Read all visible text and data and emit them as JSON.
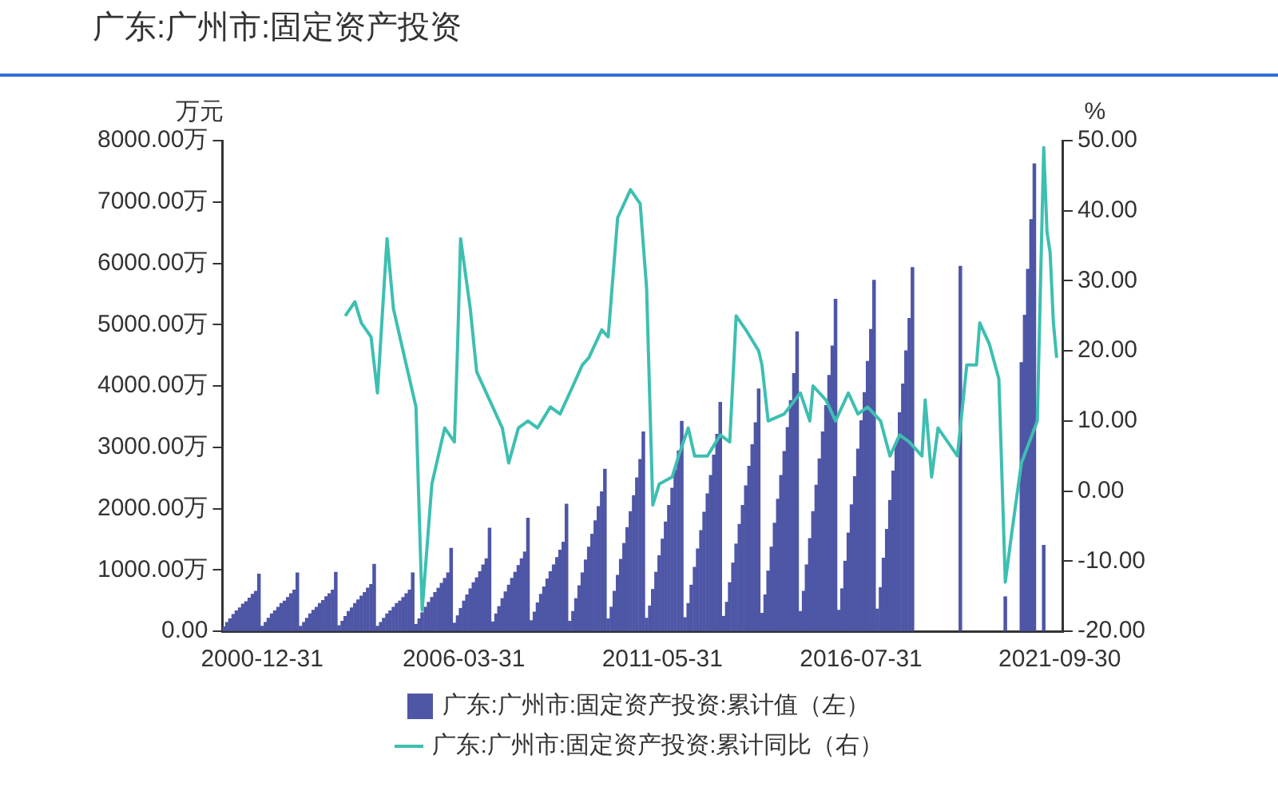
{
  "chart_data": {
    "type": "bar",
    "title": "广东:广州市:固定资产投资",
    "ylabel": "万元",
    "y2label": "%",
    "xlim": [
      "1999-12-20",
      "2021-11-01"
    ],
    "xticks": [
      "2000-12-31",
      "2006-03-31",
      "2011-05-31",
      "2016-07-31",
      "2021-09-30"
    ],
    "ylim": [
      0,
      8000
    ],
    "yticks": [
      {
        "value": 0,
        "label": "0.00"
      },
      {
        "value": 1000,
        "label": "1000.00万"
      },
      {
        "value": 2000,
        "label": "2000.00万"
      },
      {
        "value": 3000,
        "label": "3000.00万"
      },
      {
        "value": 4000,
        "label": "4000.00万"
      },
      {
        "value": 5000,
        "label": "5000.00万"
      },
      {
        "value": 6000,
        "label": "6000.00万"
      },
      {
        "value": 7000,
        "label": "7000.00万"
      },
      {
        "value": 8000,
        "label": "8000.00万"
      }
    ],
    "y2lim": [
      -20,
      50
    ],
    "y2ticks": [
      {
        "value": -20,
        "label": "-20.00"
      },
      {
        "value": -10,
        "label": "-10.00"
      },
      {
        "value": 0,
        "label": "0.00"
      },
      {
        "value": 10,
        "label": "10.00"
      },
      {
        "value": 20,
        "label": "20.00"
      },
      {
        "value": 30,
        "label": "30.00"
      },
      {
        "value": 40,
        "label": "40.00"
      },
      {
        "value": 50,
        "label": "50.00"
      }
    ],
    "grid": false,
    "legend": "bottom",
    "series": [
      {
        "name": "广东:广州市:固定资产投资:累计值（左）",
        "color": "#4e56a6",
        "x": [
          "2000-01",
          "2000-02",
          "2000-03",
          "2000-04",
          "2000-05",
          "2000-06",
          "2000-07",
          "2000-08",
          "2000-09",
          "2000-10",
          "2000-11",
          "2000-12",
          "2001-01",
          "2001-02",
          "2001-03",
          "2001-04",
          "2001-05",
          "2001-06",
          "2001-07",
          "2001-08",
          "2001-09",
          "2001-10",
          "2001-11",
          "2001-12",
          "2002-01",
          "2002-02",
          "2002-03",
          "2002-04",
          "2002-05",
          "2002-06",
          "2002-07",
          "2002-08",
          "2002-09",
          "2002-10",
          "2002-11",
          "2002-12",
          "2003-01",
          "2003-02",
          "2003-03",
          "2003-04",
          "2003-05",
          "2003-06",
          "2003-07",
          "2003-08",
          "2003-09",
          "2003-10",
          "2003-11",
          "2003-12",
          "2004-01",
          "2004-02",
          "2004-03",
          "2004-04",
          "2004-05",
          "2004-06",
          "2004-07",
          "2004-08",
          "2004-09",
          "2004-10",
          "2004-11",
          "2004-12",
          "2005-01",
          "2005-02",
          "2005-03",
          "2005-04",
          "2005-05",
          "2005-06",
          "2005-07",
          "2005-08",
          "2005-09",
          "2005-10",
          "2005-11",
          "2005-12",
          "2006-01",
          "2006-02",
          "2006-03",
          "2006-04",
          "2006-05",
          "2006-06",
          "2006-07",
          "2006-08",
          "2006-09",
          "2006-10",
          "2006-11",
          "2006-12",
          "2007-01",
          "2007-02",
          "2007-03",
          "2007-04",
          "2007-05",
          "2007-06",
          "2007-07",
          "2007-08",
          "2007-09",
          "2007-10",
          "2007-11",
          "2007-12",
          "2008-01",
          "2008-02",
          "2008-03",
          "2008-04",
          "2008-05",
          "2008-06",
          "2008-07",
          "2008-08",
          "2008-09",
          "2008-10",
          "2008-11",
          "2008-12",
          "2009-01",
          "2009-02",
          "2009-03",
          "2009-04",
          "2009-05",
          "2009-06",
          "2009-07",
          "2009-08",
          "2009-09",
          "2009-10",
          "2009-11",
          "2009-12",
          "2010-01",
          "2010-02",
          "2010-03",
          "2010-04",
          "2010-05",
          "2010-06",
          "2010-07",
          "2010-08",
          "2010-09",
          "2010-10",
          "2010-11",
          "2010-12",
          "2011-01",
          "2011-02",
          "2011-03",
          "2011-04",
          "2011-05",
          "2011-06",
          "2011-07",
          "2011-08",
          "2011-09",
          "2011-10",
          "2011-11",
          "2011-12",
          "2012-01",
          "2012-02",
          "2012-03",
          "2012-04",
          "2012-05",
          "2012-06",
          "2012-07",
          "2012-08",
          "2012-09",
          "2012-10",
          "2012-11",
          "2012-12",
          "2013-01",
          "2013-02",
          "2013-03",
          "2013-04",
          "2013-05",
          "2013-06",
          "2013-07",
          "2013-08",
          "2013-09",
          "2013-10",
          "2013-11",
          "2013-12",
          "2014-01",
          "2014-02",
          "2014-03",
          "2014-04",
          "2014-05",
          "2014-06",
          "2014-07",
          "2014-08",
          "2014-09",
          "2014-10",
          "2014-11",
          "2014-12",
          "2015-01",
          "2015-02",
          "2015-03",
          "2015-04",
          "2015-05",
          "2015-06",
          "2015-07",
          "2015-08",
          "2015-09",
          "2015-10",
          "2015-11",
          "2015-12",
          "2016-01",
          "2016-02",
          "2016-03",
          "2016-04",
          "2016-05",
          "2016-06",
          "2016-07",
          "2016-08",
          "2016-09",
          "2016-10",
          "2016-11",
          "2016-12",
          "2017-01",
          "2017-02",
          "2017-03",
          "2017-04",
          "2017-05",
          "2017-06",
          "2017-07",
          "2017-08",
          "2017-09",
          "2017-10",
          "2017-11",
          "2017-12",
          "2019-03",
          "2020-05",
          "2020-10",
          "2020-11",
          "2020-12",
          "2021-01",
          "2021-02",
          "2021-05"
        ],
        "values": [
          70,
          140,
          200,
          270,
          330,
          380,
          440,
          480,
          540,
          600,
          650,
          930,
          80,
          140,
          210,
          280,
          330,
          390,
          450,
          490,
          550,
          610,
          670,
          950,
          80,
          140,
          210,
          280,
          340,
          390,
          450,
          500,
          560,
          610,
          670,
          960,
          90,
          160,
          240,
          320,
          380,
          450,
          510,
          570,
          630,
          700,
          760,
          1090,
          80,
          140,
          210,
          280,
          330,
          390,
          450,
          490,
          550,
          610,
          670,
          950,
          110,
          200,
          300,
          390,
          470,
          550,
          630,
          700,
          780,
          860,
          950,
          1350,
          130,
          250,
          370,
          490,
          590,
          690,
          790,
          870,
          970,
          1080,
          1180,
          1680,
          150,
          280,
          400,
          530,
          640,
          750,
          860,
          960,
          1070,
          1180,
          1290,
          1840,
          170,
          310,
          460,
          600,
          720,
          850,
          970,
          1080,
          1200,
          1320,
          1450,
          2070,
          160,
          320,
          530,
          740,
          950,
          1160,
          1370,
          1580,
          1800,
          2030,
          2270,
          2640,
          200,
          390,
          650,
          910,
          1170,
          1430,
          1690,
          1950,
          2210,
          2500,
          2800,
          3250,
          210,
          410,
          680,
          960,
          1230,
          1500,
          1780,
          2050,
          2330,
          2630,
          2940,
          3420,
          220,
          450,
          750,
          1040,
          1340,
          1640,
          1940,
          2240,
          2540,
          2870,
          3210,
          3730,
          240,
          470,
          790,
          1110,
          1420,
          1740,
          2050,
          2370,
          2690,
          3040,
          3400,
          3950,
          290,
          590,
          980,
          1370,
          1760,
          2150,
          2540,
          2930,
          3320,
          3760,
          4200,
          4880,
          320,
          650,
          1080,
          1510,
          1950,
          2380,
          2810,
          3250,
          3680,
          4170,
          4650,
          5410,
          340,
          690,
          1140,
          1600,
          2060,
          2520,
          2970,
          3430,
          3890,
          4400,
          4920,
          5720,
          360,
          710,
          1190,
          1660,
          2130,
          2610,
          3080,
          3560,
          4030,
          4570,
          5100,
          5930,
          5950,
          560,
          4380,
          5150,
          5900,
          6710,
          7620,
          1400
        ]
      },
      {
        "name": "广东:广州市:固定资产投资:累计同比（右）",
        "type": "line",
        "axis": "y2",
        "color": "#3dbfb1",
        "x": [
          "2003-03",
          "2003-06",
          "2003-08",
          "2003-11",
          "2004-01",
          "2004-04",
          "2004-06",
          "2004-10",
          "2005-01",
          "2005-03",
          "2005-06",
          "2005-08",
          "2005-10",
          "2006-01",
          "2006-02",
          "2006-03",
          "2006-06",
          "2006-08",
          "2006-12",
          "2007-04",
          "2007-06",
          "2007-09",
          "2007-12",
          "2008-03",
          "2008-07",
          "2008-10",
          "2009-01",
          "2009-05",
          "2009-07",
          "2009-11",
          "2010-01",
          "2010-04",
          "2010-08",
          "2010-11",
          "2011-01",
          "2011-03",
          "2011-05",
          "2011-09",
          "2011-11",
          "2012-02",
          "2012-04",
          "2012-08",
          "2012-12",
          "2013-03",
          "2013-05",
          "2013-08",
          "2013-12",
          "2014-01",
          "2014-03",
          "2014-08",
          "2015-01",
          "2015-04",
          "2015-05",
          "2015-09",
          "2015-12",
          "2016-04",
          "2016-07",
          "2016-10",
          "2017-02",
          "2017-05",
          "2017-08",
          "2017-11",
          "2018-03",
          "2018-04",
          "2018-06",
          "2018-08",
          "2018-11",
          "2019-02",
          "2019-05",
          "2019-08",
          "2019-09",
          "2019-12",
          "2020-03",
          "2020-05",
          "2020-07",
          "2020-10",
          "2021-03",
          "2021-05",
          "2021-06",
          "2021-07",
          "2021-08",
          "2021-09"
        ],
        "values": [
          25,
          27,
          24,
          22,
          14,
          36,
          26,
          18,
          12,
          -17,
          1,
          5,
          9,
          7,
          21,
          36,
          26,
          17,
          13,
          9,
          4,
          9,
          10,
          9,
          12,
          11,
          14,
          18,
          19,
          23,
          22,
          39,
          43,
          41,
          29,
          -2,
          1,
          2,
          5,
          9,
          5,
          5,
          8,
          7,
          25,
          23,
          20,
          18,
          10,
          11,
          14,
          10,
          15,
          13,
          10,
          14,
          11,
          12,
          10,
          5,
          8,
          7,
          5,
          13,
          2,
          9,
          7,
          5,
          18,
          18,
          24,
          21,
          16,
          -13,
          -6,
          4,
          10,
          49,
          37,
          34,
          24,
          19
        ]
      }
    ]
  }
}
